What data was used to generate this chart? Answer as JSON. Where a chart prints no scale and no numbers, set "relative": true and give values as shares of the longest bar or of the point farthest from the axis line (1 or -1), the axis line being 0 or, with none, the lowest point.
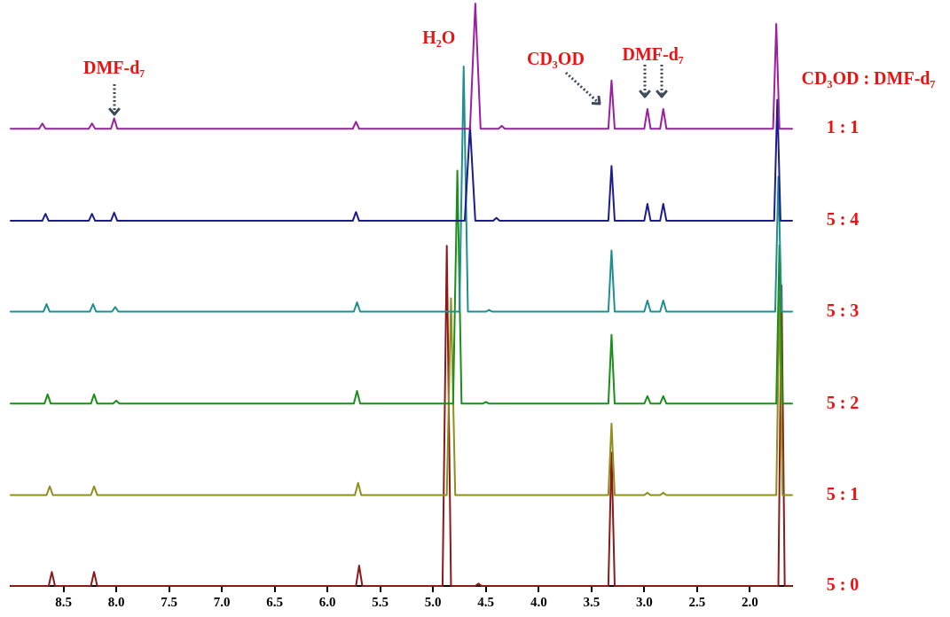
{
  "chart_data": {
    "type": "line",
    "relative": true,
    "legend_title": "CD₃OD : DMF-d₇",
    "legend": false,
    "grid": false,
    "tick_labels": "x",
    "marker": "none",
    "line_style": "solid",
    "xlim": [
      9.0,
      1.6
    ],
    "xticks": [
      8.5,
      {
        "value": 8,
        "label": "8.0"
      },
      7.5,
      {
        "value": 7,
        "label": "7.0"
      },
      6.5,
      {
        "value": 6,
        "label": "6.0"
      },
      5.5,
      {
        "value": 5,
        "label": "5.0"
      },
      4.5,
      {
        "value": 4,
        "label": "4.0"
      },
      3.5,
      {
        "value": 3,
        "label": "3.0"
      },
      2.5,
      {
        "value": 2,
        "label": "2.0"
      }
    ],
    "annotations": [
      {
        "text": "DMF-d₇",
        "x": 8.02,
        "y": 0.803
      },
      "H₂O",
      {
        "text": "CD₃OD",
        "x": 3.31,
        "y": 0.868
      },
      "DMF-d₇"
    ],
    "series": [
      {
        "name": "1 : 1",
        "color": "#9b1fa0",
        "x": [
          9.0,
          8.73,
          8.7,
          8.67,
          8.26,
          8.23,
          8.2,
          8.05,
          8.02,
          7.99,
          5.76,
          5.73,
          5.7,
          4.65,
          4.6,
          4.55,
          4.38,
          4.35,
          4.32,
          3.34,
          3.31,
          3.28,
          3.0,
          2.97,
          2.94,
          2.85,
          2.82,
          2.79,
          1.78,
          1.75,
          1.72,
          1.6
        ],
        "values": [
          0.785,
          0.785,
          0.794,
          0.785,
          0.785,
          0.794,
          0.785,
          0.785,
          0.803,
          0.785,
          0.785,
          0.797,
          0.785,
          0.785,
          1.0,
          0.785,
          0.785,
          0.79,
          0.785,
          0.785,
          0.868,
          0.785,
          0.785,
          0.819,
          0.785,
          0.785,
          0.819,
          0.785,
          0.785,
          0.965,
          0.785,
          0.785
        ]
      },
      {
        "name": "5 : 4",
        "color": "#1c1c8e",
        "x": [
          9.0,
          8.7,
          8.67,
          8.64,
          8.26,
          8.23,
          8.2,
          8.05,
          8.02,
          7.99,
          5.76,
          5.73,
          5.7,
          4.7,
          4.65,
          4.6,
          4.43,
          4.4,
          4.37,
          3.34,
          3.31,
          3.28,
          3.0,
          2.97,
          2.94,
          2.85,
          2.82,
          2.79,
          1.77,
          1.74,
          1.71,
          1.6
        ],
        "values": [
          0.627,
          0.627,
          0.639,
          0.627,
          0.627,
          0.639,
          0.627,
          0.627,
          0.641,
          0.627,
          0.627,
          0.642,
          0.627,
          0.627,
          0.79,
          0.627,
          0.627,
          0.632,
          0.627,
          0.627,
          0.721,
          0.627,
          0.627,
          0.656,
          0.627,
          0.627,
          0.656,
          0.627,
          0.627,
          0.835,
          0.627,
          0.627
        ]
      },
      {
        "name": "5 : 3",
        "color": "#1f8f8f",
        "x": [
          9.0,
          8.69,
          8.66,
          8.63,
          8.25,
          8.22,
          8.19,
          8.04,
          8.01,
          7.98,
          5.75,
          5.72,
          5.69,
          4.75,
          4.71,
          4.67,
          4.5,
          4.47,
          4.44,
          3.34,
          3.31,
          3.28,
          3.0,
          2.97,
          2.94,
          2.85,
          2.82,
          2.79,
          1.76,
          1.73,
          1.7,
          1.6
        ],
        "values": [
          0.471,
          0.471,
          0.484,
          0.471,
          0.471,
          0.484,
          0.471,
          0.471,
          0.479,
          0.471,
          0.471,
          0.487,
          0.471,
          0.471,
          0.892,
          0.471,
          0.471,
          0.474,
          0.471,
          0.471,
          0.576,
          0.471,
          0.471,
          0.49,
          0.471,
          0.471,
          0.49,
          0.471,
          0.471,
          0.703,
          0.471,
          0.471
        ]
      },
      {
        "name": "5 : 2",
        "color": "#1a8f1a",
        "x": [
          9.0,
          8.68,
          8.65,
          8.62,
          8.24,
          8.21,
          8.18,
          8.03,
          8.0,
          7.97,
          5.75,
          5.72,
          5.69,
          4.81,
          4.77,
          4.73,
          4.53,
          4.5,
          4.47,
          3.34,
          3.31,
          3.28,
          3.0,
          2.97,
          2.94,
          2.85,
          2.82,
          2.79,
          1.75,
          1.72,
          1.69,
          1.6
        ],
        "values": [
          0.313,
          0.313,
          0.329,
          0.313,
          0.313,
          0.329,
          0.313,
          0.313,
          0.318,
          0.313,
          0.313,
          0.335,
          0.313,
          0.313,
          0.713,
          0.313,
          0.313,
          0.316,
          0.313,
          0.313,
          0.431,
          0.313,
          0.313,
          0.326,
          0.313,
          0.313,
          0.326,
          0.313,
          0.313,
          0.585,
          0.313,
          0.313
        ]
      },
      {
        "name": "5 : 1",
        "color": "#8f8f1c",
        "x": [
          9.0,
          8.66,
          8.63,
          8.6,
          8.24,
          8.21,
          8.18,
          5.74,
          5.71,
          5.68,
          4.87,
          4.83,
          4.79,
          3.34,
          3.31,
          3.28,
          3.0,
          2.97,
          2.94,
          2.85,
          2.82,
          2.79,
          1.75,
          1.72,
          1.69,
          1.6
        ],
        "values": [
          0.156,
          0.156,
          0.171,
          0.156,
          0.156,
          0.171,
          0.156,
          0.156,
          0.177,
          0.156,
          0.156,
          0.494,
          0.156,
          0.156,
          0.279,
          0.156,
          0.156,
          0.16,
          0.156,
          0.156,
          0.16,
          0.156,
          0.156,
          0.5,
          0.156,
          0.156
        ]
      },
      {
        "name": "5 : 0",
        "color": "#8b1a1a",
        "x": [
          9.0,
          8.64,
          8.61,
          8.58,
          8.24,
          8.21,
          8.18,
          5.73,
          5.7,
          5.67,
          4.91,
          4.87,
          4.83,
          4.6,
          4.57,
          4.54,
          3.34,
          3.31,
          3.28,
          1.73,
          1.7,
          1.67,
          1.6
        ],
        "values": [
          0,
          0,
          0.024,
          0,
          0,
          0.024,
          0,
          0,
          0.035,
          0,
          0,
          0.584,
          0,
          0,
          0.004,
          0,
          0,
          0.229,
          0,
          0,
          0.516,
          0,
          0
        ]
      }
    ]
  }
}
